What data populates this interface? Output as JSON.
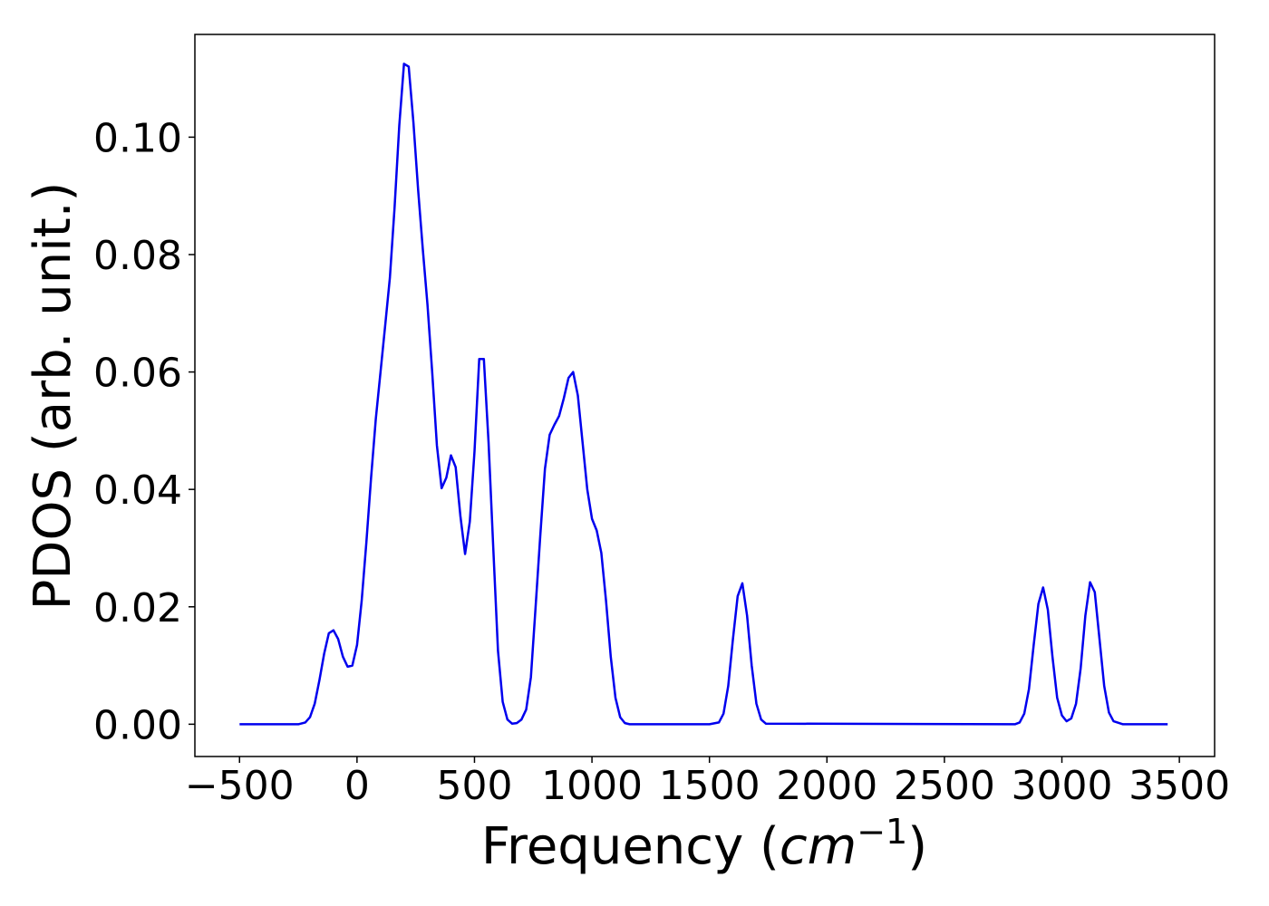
{
  "chart_data": {
    "type": "line",
    "title": "",
    "xlabel": "Frequency",
    "xlabel_unit_base": "cm",
    "xlabel_unit_exp": "−1",
    "ylabel": "PDOS (arb. unit.)",
    "xlim": [
      -690,
      3650
    ],
    "ylim": [
      -0.0055,
      0.1175
    ],
    "xticks": [
      -500,
      0,
      500,
      1000,
      1500,
      2000,
      2500,
      3000,
      3500
    ],
    "xtick_labels": [
      "−500",
      "0",
      "500",
      "1000",
      "1500",
      "2000",
      "2500",
      "3000",
      "3500"
    ],
    "yticks": [
      0.0,
      0.02,
      0.04,
      0.06,
      0.08,
      0.1
    ],
    "ytick_labels": [
      "0.00",
      "0.02",
      "0.04",
      "0.06",
      "0.08",
      "0.10"
    ],
    "grid": false,
    "series": [
      {
        "color": "#0000ee",
        "x": [
          -500,
          -250,
          -220,
          -200,
          -180,
          -160,
          -140,
          -120,
          -100,
          -80,
          -60,
          -40,
          -20,
          0,
          20,
          40,
          60,
          80,
          100,
          120,
          140,
          160,
          180,
          200,
          220,
          240,
          260,
          280,
          300,
          320,
          340,
          360,
          380,
          400,
          420,
          440,
          460,
          480,
          500,
          520,
          540,
          560,
          580,
          600,
          620,
          640,
          660,
          680,
          700,
          720,
          740,
          760,
          780,
          800,
          820,
          840,
          860,
          880,
          900,
          920,
          940,
          960,
          980,
          1000,
          1020,
          1040,
          1060,
          1080,
          1100,
          1120,
          1140,
          1160,
          1180,
          1500,
          1540,
          1560,
          1580,
          1600,
          1620,
          1640,
          1660,
          1680,
          1700,
          1720,
          1740,
          2800,
          2820,
          2840,
          2860,
          2880,
          2900,
          2920,
          2940,
          2960,
          2980,
          3000,
          3020,
          3040,
          3060,
          3080,
          3100,
          3120,
          3140,
          3160,
          3180,
          3200,
          3220,
          3260,
          3450
        ],
        "y": [
          0.0,
          0.0,
          0.0003,
          0.0012,
          0.0035,
          0.0075,
          0.012,
          0.0155,
          0.016,
          0.0145,
          0.0115,
          0.0098,
          0.01,
          0.0135,
          0.021,
          0.031,
          0.042,
          0.052,
          0.06,
          0.068,
          0.076,
          0.088,
          0.102,
          0.1125,
          0.112,
          0.1025,
          0.091,
          0.081,
          0.0715,
          0.06,
          0.0475,
          0.0402,
          0.042,
          0.0458,
          0.0438,
          0.0355,
          0.029,
          0.0345,
          0.0465,
          0.0622,
          0.0622,
          0.048,
          0.03,
          0.0125,
          0.0038,
          0.0008,
          0.0001,
          0.0002,
          0.0008,
          0.0025,
          0.008,
          0.02,
          0.032,
          0.0435,
          0.0493,
          0.051,
          0.0525,
          0.0555,
          0.059,
          0.06,
          0.056,
          0.048,
          0.04,
          0.035,
          0.033,
          0.0292,
          0.021,
          0.0115,
          0.0045,
          0.0012,
          0.0002,
          0.0,
          0.0,
          0.0,
          0.0003,
          0.0018,
          0.0065,
          0.0145,
          0.0218,
          0.024,
          0.0185,
          0.01,
          0.0035,
          0.0008,
          0.0001,
          0.0,
          0.0003,
          0.0018,
          0.006,
          0.0135,
          0.0205,
          0.0233,
          0.0195,
          0.0115,
          0.0045,
          0.0015,
          0.0005,
          0.001,
          0.0035,
          0.0095,
          0.0185,
          0.0242,
          0.0225,
          0.0145,
          0.0065,
          0.002,
          0.0005,
          0.0,
          0.0
        ]
      }
    ]
  }
}
